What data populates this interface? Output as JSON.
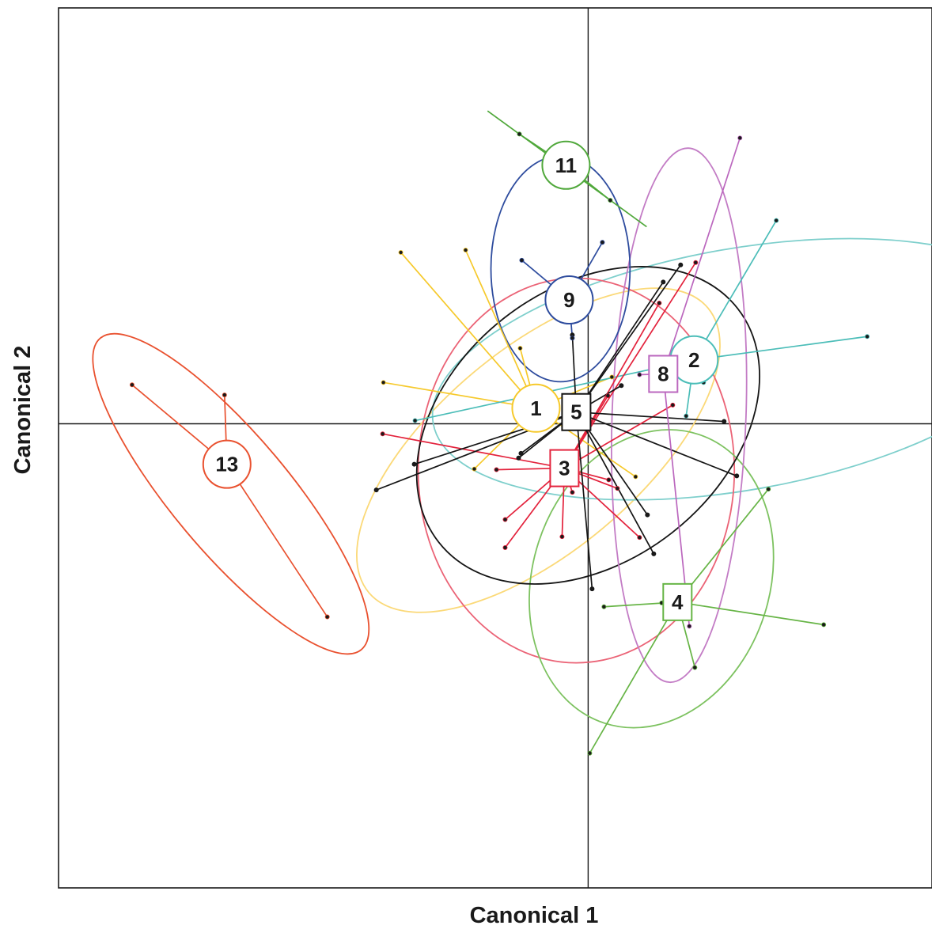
{
  "chart_data": {
    "type": "scatter",
    "title": "",
    "xlabel": "Canonical 1",
    "ylabel": "Canonical 2",
    "xlim": [
      -6.7,
      4.35
    ],
    "ylim": [
      -5.96,
      5.34
    ],
    "grid": false,
    "legend": "none",
    "series": [
      {
        "name": "1",
        "marker": "circle",
        "color": "#F6C92B",
        "ellipse_color": "#FBD978",
        "centroid": [
          -0.66,
          0.2
        ],
        "ellipse": {
          "cx": -0.63,
          "cy": -0.34,
          "rx": 2.8,
          "ry": 1.3,
          "angle": -40
        },
        "points": [
          [
            -1.55,
            2.23
          ],
          [
            -2.37,
            2.2
          ],
          [
            -2.59,
            0.53
          ],
          [
            -1.44,
            -0.58
          ],
          [
            0.6,
            -0.68
          ],
          [
            0.3,
            0.6
          ],
          [
            -0.86,
            0.97
          ]
        ]
      },
      {
        "name": "2",
        "marker": "circle",
        "color": "#4BBDB8",
        "ellipse_color": "#7ECFCC",
        "centroid": [
          1.34,
          0.82
        ],
        "ellipse": {
          "cx": 1.93,
          "cy": 0.7,
          "rx": 3.95,
          "ry": 1.55,
          "angle": -10
        },
        "points": [
          [
            2.38,
            2.61
          ],
          [
            3.53,
            1.12
          ],
          [
            -2.19,
            0.04
          ],
          [
            1.46,
            0.53
          ],
          [
            1.24,
            0.1
          ]
        ]
      },
      {
        "name": "3",
        "marker": "square",
        "color": "#E3223C",
        "ellipse_color": "#EB6376",
        "centroid": [
          -0.3,
          -0.57
        ],
        "ellipse": {
          "cx": -0.15,
          "cy": -0.6,
          "rx": 2.0,
          "ry": 2.47,
          "angle": 0
        },
        "points": [
          [
            -2.6,
            -0.13
          ],
          [
            -1.16,
            -0.59
          ],
          [
            -1.05,
            -1.23
          ],
          [
            -1.05,
            -1.59
          ],
          [
            -0.33,
            -1.45
          ],
          [
            -0.2,
            -0.88
          ],
          [
            0.26,
            -0.72
          ],
          [
            0.65,
            -1.46
          ],
          [
            0.37,
            -0.83
          ],
          [
            1.36,
            2.07
          ],
          [
            1.07,
            0.24
          ],
          [
            0.25,
            0.36
          ],
          [
            0.9,
            1.55
          ]
        ]
      },
      {
        "name": "4",
        "marker": "square",
        "color": "#66B445",
        "ellipse_color": "#7DC260",
        "centroid": [
          1.13,
          -2.29
        ],
        "ellipse": {
          "cx": 0.8,
          "cy": -1.99,
          "rx": 1.5,
          "ry": 1.95,
          "angle": 18
        },
        "points": [
          [
            2.28,
            -0.84
          ],
          [
            2.98,
            -2.58
          ],
          [
            1.35,
            -3.13
          ],
          [
            0.2,
            -2.35
          ],
          [
            0.93,
            -2.3
          ],
          [
            0.02,
            -4.23
          ]
        ]
      },
      {
        "name": "5",
        "marker": "square",
        "color": "#151515",
        "ellipse_color": "#151515",
        "centroid": [
          -0.15,
          0.15
        ],
        "ellipse": {
          "cx": 0.0,
          "cy": -0.02,
          "rx": 2.4,
          "ry": 1.75,
          "angle": -38
        },
        "points": [
          [
            -2.2,
            -0.52
          ],
          [
            -2.68,
            -0.85
          ],
          [
            -0.88,
            -0.44
          ],
          [
            0.95,
            1.82
          ],
          [
            1.17,
            2.04
          ],
          [
            1.72,
            0.03
          ],
          [
            1.88,
            -0.67
          ],
          [
            0.75,
            -1.17
          ],
          [
            0.83,
            -1.67
          ],
          [
            0.05,
            -2.12
          ],
          [
            -0.85,
            -0.38
          ],
          [
            0.42,
            0.49
          ],
          [
            -0.2,
            1.14
          ]
        ]
      },
      {
        "name": "8",
        "marker": "square",
        "color": "#BB67BE",
        "ellipse_color": "#C37CC5",
        "centroid": [
          0.95,
          0.64
        ],
        "ellipse": {
          "cx": 1.15,
          "cy": 0.11,
          "rx": 3.38,
          "ry": 0.86,
          "angle": -88
        },
        "points": [
          [
            1.92,
            3.67
          ],
          [
            1.28,
            -2.6
          ],
          [
            0.65,
            0.63
          ]
        ]
      },
      {
        "name": "9",
        "marker": "circle",
        "color": "#2E4C9E",
        "ellipse_color": "#2E4C9E",
        "centroid": [
          -0.24,
          1.59
        ],
        "ellipse": {
          "cx": -0.35,
          "cy": 1.99,
          "rx": 0.88,
          "ry": 1.45,
          "angle": 0
        },
        "points": [
          [
            -0.84,
            2.1
          ],
          [
            0.18,
            2.33
          ],
          [
            -0.2,
            1.1
          ]
        ]
      },
      {
        "name": "11",
        "marker": "circle",
        "color": "#50A83B",
        "ellipse_color": "#50A83B",
        "centroid": [
          -0.28,
          3.32
        ],
        "points": [
          [
            -0.87,
            3.72
          ],
          [
            0.28,
            2.87
          ]
        ]
      },
      {
        "name": "13",
        "marker": "circle",
        "color": "#E9512F",
        "ellipse_color": "#E9512F",
        "centroid": [
          -4.57,
          -0.52
        ],
        "ellipse": {
          "cx": -4.52,
          "cy": -0.9,
          "rx": 2.57,
          "ry": 0.75,
          "angle": 50
        },
        "points": [
          [
            -5.77,
            0.5
          ],
          [
            -4.6,
            0.37
          ],
          [
            -3.3,
            -2.48
          ]
        ]
      }
    ]
  }
}
